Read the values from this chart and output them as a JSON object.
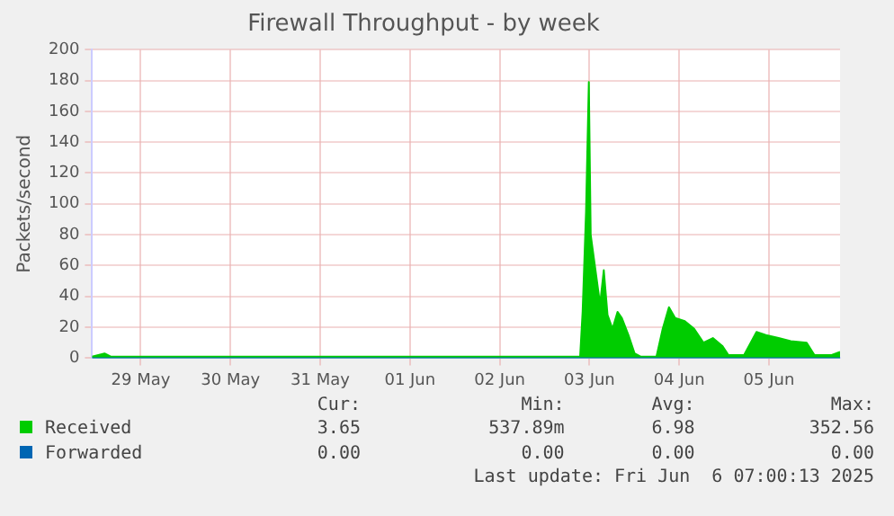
{
  "chart_data": {
    "type": "area",
    "title": "Firewall Throughput - by week",
    "ylabel": "Packets/second",
    "xlim": [
      "2025-05-28T23:00",
      "2025-06-06T07:00"
    ],
    "xticks": [
      {
        "value": "2025-05-29T12:00",
        "label": "29 May"
      },
      {
        "value": "2025-05-30T12:00",
        "label": "30 May"
      },
      {
        "value": "2025-05-31T12:00",
        "label": "31 May"
      },
      {
        "value": "2025-06-01T12:00",
        "label": "01 Jun"
      },
      {
        "value": "2025-06-02T12:00",
        "label": "02 Jun"
      },
      {
        "value": "2025-06-03T12:00",
        "label": "03 Jun"
      },
      {
        "value": "2025-06-04T12:00",
        "label": "04 Jun"
      },
      {
        "value": "2025-06-05T12:00",
        "label": "05 Jun"
      }
    ],
    "ylim": [
      0,
      200
    ],
    "yticks": [
      0,
      20,
      40,
      60,
      80,
      100,
      120,
      140,
      160,
      180,
      200
    ],
    "grid": true,
    "legend": "bottom",
    "series": [
      {
        "name": "Received",
        "color": "#00cc00",
        "x": [
          "2025-05-28T23:00",
          "2025-05-29T02:20",
          "2025-05-29T04:00",
          "2025-05-29T12:00",
          "2025-05-30T00:00",
          "2025-05-30T12:00",
          "2025-05-31T00:00",
          "2025-05-31T12:00",
          "2025-06-01T00:00",
          "2025-06-01T12:00",
          "2025-06-02T00:00",
          "2025-06-02T12:00",
          "2025-06-03T00:00",
          "2025-06-03T09:30",
          "2025-06-03T10:10",
          "2025-06-03T11:05",
          "2025-06-03T11:50",
          "2025-06-03T12:20",
          "2025-06-03T13:10",
          "2025-06-03T14:00",
          "2025-06-03T14:50",
          "2025-06-03T15:50",
          "2025-06-03T16:50",
          "2025-06-03T18:10",
          "2025-06-03T19:30",
          "2025-06-03T20:40",
          "2025-06-03T22:25",
          "2025-06-04T00:05",
          "2025-06-04T01:40",
          "2025-06-04T05:55",
          "2025-06-04T07:35",
          "2025-06-04T09:15",
          "2025-06-04T10:55",
          "2025-06-04T13:30",
          "2025-06-04T16:00",
          "2025-06-04T18:30",
          "2025-06-04T21:00",
          "2025-06-04T23:30",
          "2025-06-05T01:10",
          "2025-06-05T05:20",
          "2025-06-05T08:40",
          "2025-06-05T11:10",
          "2025-06-05T14:35",
          "2025-06-05T17:50",
          "2025-06-05T22:05",
          "2025-06-06T00:10",
          "2025-06-06T04:45",
          "2025-06-06T07:00"
        ],
        "values": [
          1,
          3,
          1,
          1,
          1,
          1,
          1,
          1,
          1,
          1,
          1,
          1,
          1,
          1,
          30,
          95,
          179,
          80,
          65,
          50,
          35,
          57,
          28,
          19,
          30,
          26,
          15,
          3,
          1,
          1,
          19,
          33,
          26,
          24,
          19,
          10,
          13,
          8,
          2,
          2,
          17,
          15,
          13,
          11,
          10,
          2,
          2,
          4
        ]
      },
      {
        "name": "Forwarded",
        "type": "line",
        "color": "#0066b3",
        "x": [
          "2025-05-28T23:00",
          "2025-06-06T07:00"
        ],
        "values": [
          0,
          0
        ]
      }
    ],
    "annotations": [
      "Cur:",
      "Min:",
      "Avg:",
      "Max:",
      "3.65",
      "537.89m",
      "6.98",
      "352.56",
      "0.00",
      "0.00",
      "0.00",
      "0.00",
      "Last update: Fri Jun  6 07:00:13 2025"
    ]
  }
}
